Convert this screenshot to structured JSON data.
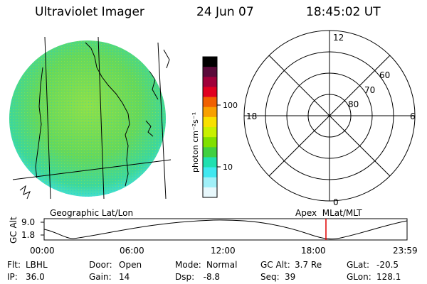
{
  "header": {
    "instrument": "Ultraviolet Imager",
    "date": "24 Jun 07",
    "time": "18:45:02 UT"
  },
  "colorbar": {
    "unit_label": "photon cm⁻²s⁻¹",
    "ticks": [
      "100",
      "10"
    ],
    "colors": [
      "#000000",
      "#5a0a3a",
      "#a0003a",
      "#e00020",
      "#f06000",
      "#f8a000",
      "#f8e000",
      "#c8f000",
      "#80e000",
      "#40d040",
      "#20e0b0",
      "#40e8f0",
      "#a0f0f8",
      "#e8f8fc"
    ]
  },
  "polar_plot": {
    "ring_labels": [
      "80",
      "70",
      "60"
    ],
    "mlt_labels": {
      "top": "12",
      "right": "6",
      "bottom": "0",
      "left": "18"
    }
  },
  "altitude_panel": {
    "ylabel": "GC Alt",
    "yticks": [
      "9.0",
      "1.8"
    ],
    "left_caption": "Geographic Lat/Lon",
    "right_caption": "Apex  MLat/MLT",
    "xticks": [
      "00:00",
      "06:00",
      "12:00",
      "18:00",
      "23:59"
    ],
    "current_time_marker_color": "#e00000"
  },
  "status": {
    "row1": [
      {
        "label": "Flt:",
        "value": "LBHL"
      },
      {
        "label": "Door:",
        "value": "Open"
      },
      {
        "label": "Mode:",
        "value": "Normal"
      },
      {
        "label": "GC Alt:",
        "value": "3.7 Re"
      },
      {
        "label": "GLat:",
        "value": "-20.5"
      }
    ],
    "row2": [
      {
        "label": "IP:",
        "value": "36.0"
      },
      {
        "label": "Gain:",
        "value": "14"
      },
      {
        "label": "Dsp:",
        "value": "  -8.8"
      },
      {
        "label": "Seq:",
        "value": "39"
      },
      {
        "label": "GLon:",
        "value": "128.1"
      }
    ]
  }
}
